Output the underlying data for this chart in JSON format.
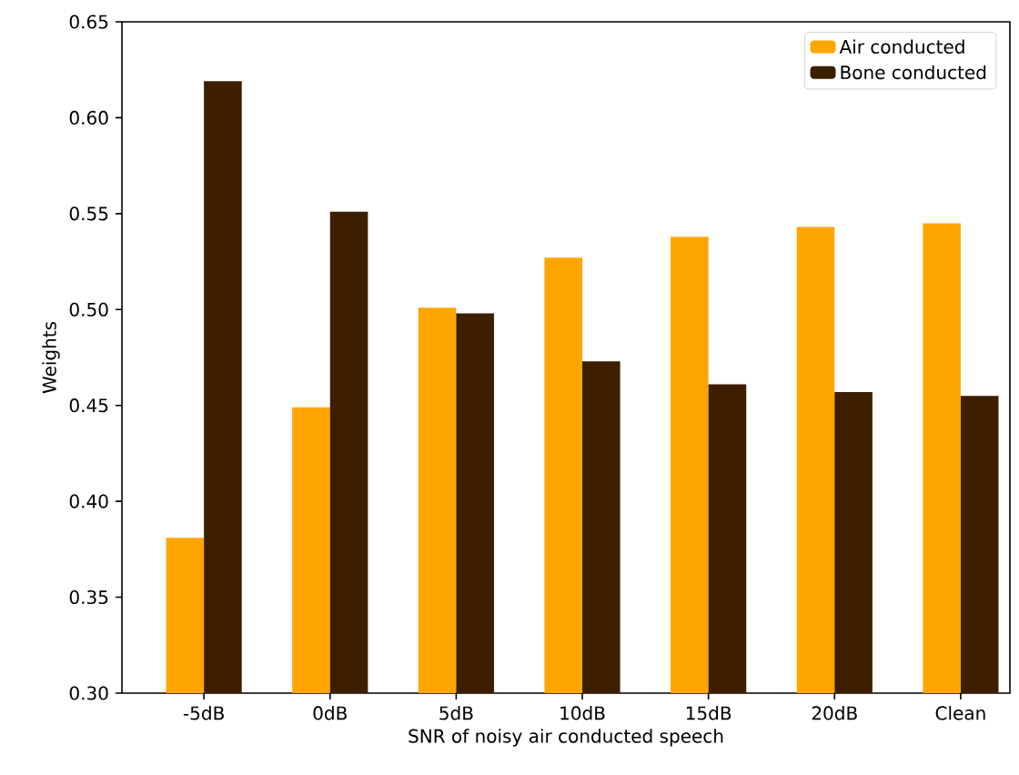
{
  "chart_data": {
    "type": "bar",
    "xlabel": "SNR of noisy air conducted speech",
    "ylabel": "Weights",
    "categories": [
      "-5dB",
      "0dB",
      "5dB",
      "10dB",
      "15dB",
      "20dB",
      "Clean"
    ],
    "series": [
      {
        "name": "Air conducted",
        "color": "#ffa500",
        "values": [
          0.381,
          0.449,
          0.501,
          0.527,
          0.538,
          0.543,
          0.545
        ]
      },
      {
        "name": "Bone conducted",
        "color": "#3d1f00",
        "values": [
          0.619,
          0.551,
          0.498,
          0.473,
          0.461,
          0.457,
          0.455
        ]
      }
    ],
    "ylim": [
      0.3,
      0.65
    ],
    "yticks": [
      {
        "value": 0.3,
        "label": "0.30"
      },
      {
        "value": 0.35,
        "label": "0.35"
      },
      {
        "value": 0.4,
        "label": "0.40"
      },
      {
        "value": 0.45,
        "label": "0.45"
      },
      {
        "value": 0.5,
        "label": "0.50"
      },
      {
        "value": 0.55,
        "label": "0.55"
      },
      {
        "value": 0.6,
        "label": "0.60"
      },
      {
        "value": 0.65,
        "label": "0.65"
      }
    ],
    "legend": "top right"
  }
}
